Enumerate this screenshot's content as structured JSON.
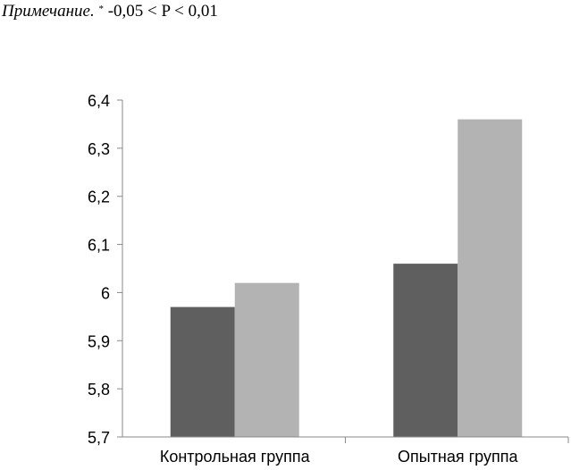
{
  "note": {
    "label": "Примечание.",
    "marker": "*",
    "text": " -0,05 < P < 0,01"
  },
  "chart_data": {
    "type": "bar",
    "title": "",
    "xlabel": "",
    "ylabel": "",
    "categories": [
      "Контрольная группа",
      "Опытная группа"
    ],
    "series": [
      {
        "values": [
          5.97,
          6.06
        ],
        "color": "#5f5f5f"
      },
      {
        "values": [
          6.02,
          6.36
        ],
        "color": "#b3b3b3"
      }
    ],
    "ylim": [
      5.7,
      6.4
    ],
    "yticks": [
      5.7,
      5.8,
      5.9,
      6.0,
      6.1,
      6.2,
      6.3,
      6.4
    ],
    "ytick_labels": [
      "5,7",
      "5,8",
      "5,9",
      "6",
      "6,1",
      "6,2",
      "6,3",
      "6,4"
    ],
    "grid": false,
    "legend": "none"
  }
}
